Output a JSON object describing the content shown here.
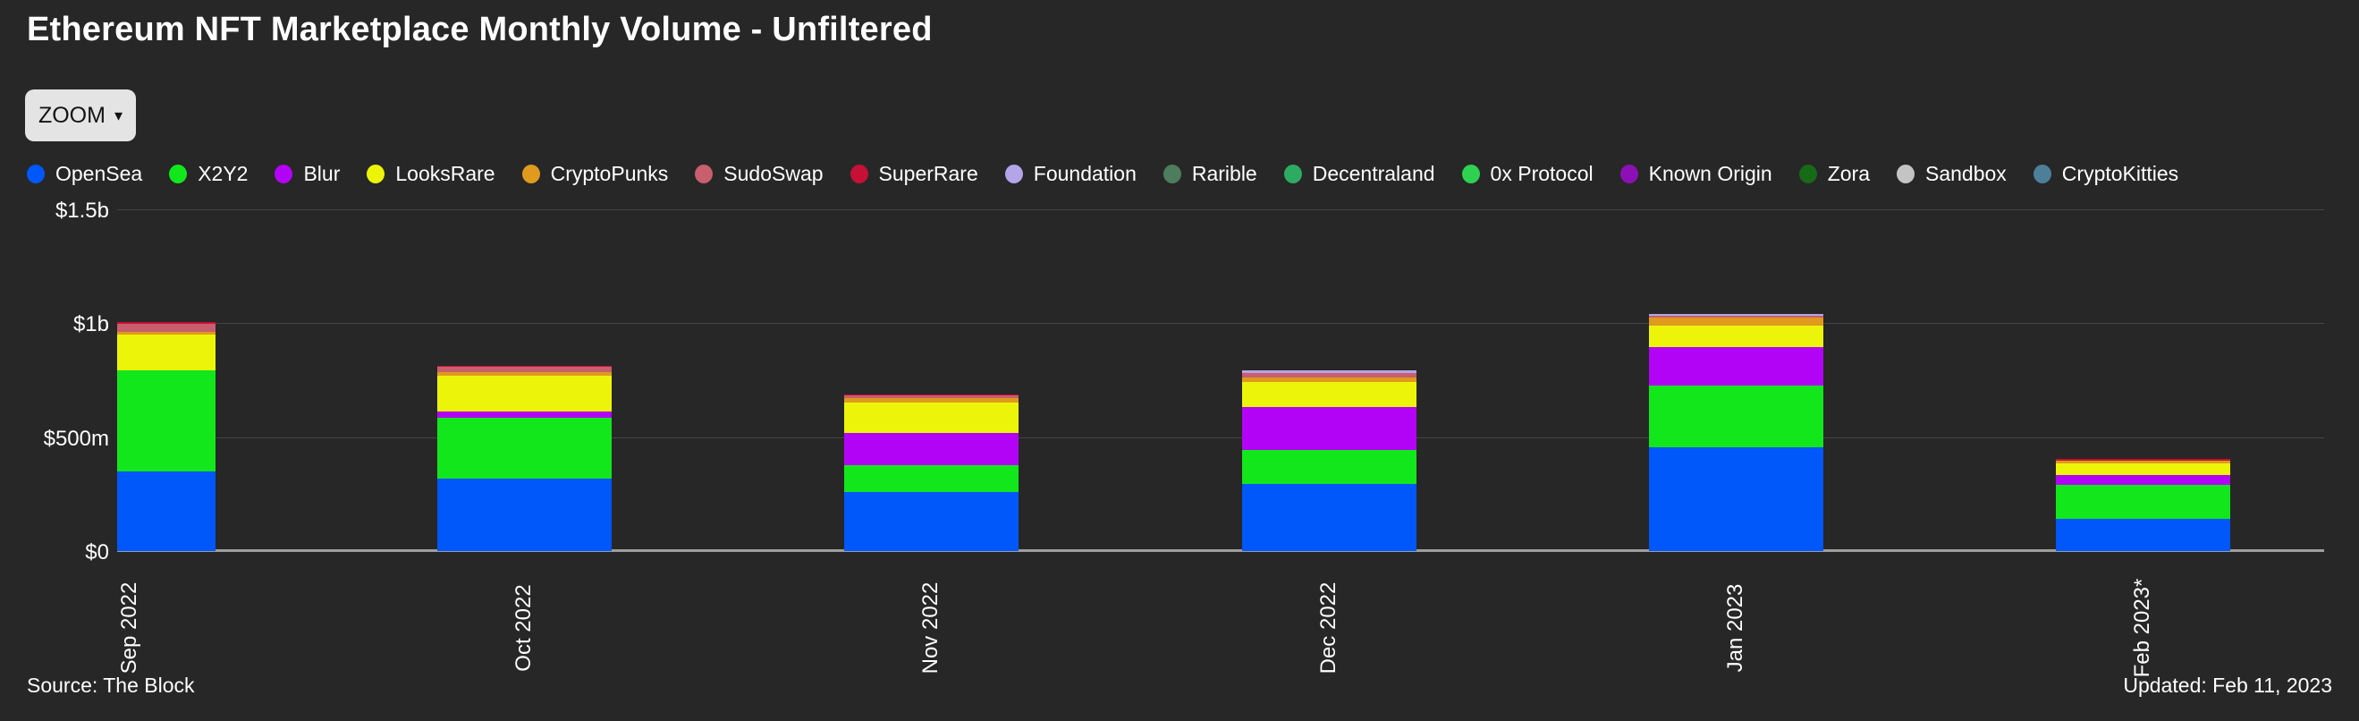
{
  "title": "Ethereum NFT Marketplace Monthly Volume - Unfiltered",
  "toolbar": {
    "zoom_label": "ZOOM",
    "zoom_caret": "▾"
  },
  "legend": [
    {
      "name": "OpenSea",
      "color": "#0057fa"
    },
    {
      "name": "X2Y2",
      "color": "#12e71c"
    },
    {
      "name": "Blur",
      "color": "#b303f7"
    },
    {
      "name": "LooksRare",
      "color": "#ecf509"
    },
    {
      "name": "CryptoPunks",
      "color": "#e09a1e"
    },
    {
      "name": "SudoSwap",
      "color": "#c75f6c"
    },
    {
      "name": "SuperRare",
      "color": "#c61036"
    },
    {
      "name": "Foundation",
      "color": "#b4a5e8"
    },
    {
      "name": "Rarible",
      "color": "#4d7d5c"
    },
    {
      "name": "Decentraland",
      "color": "#2dab63"
    },
    {
      "name": "0x Protocol",
      "color": "#2ed150"
    },
    {
      "name": "Known Origin",
      "color": "#8c10b5"
    },
    {
      "name": "Zora",
      "color": "#176a17"
    },
    {
      "name": "Sandbox",
      "color": "#c2c4c6"
    },
    {
      "name": "CryptoKitties",
      "color": "#4d7f99"
    }
  ],
  "chart_data": {
    "type": "bar",
    "stacked": true,
    "title": "Ethereum NFT Marketplace Monthly Volume - Unfiltered",
    "unit": "USD millions",
    "categories": [
      "Sep 2022",
      "Oct 2022",
      "Nov 2022",
      "Dec 2022",
      "Jan 2023",
      "Feb 2023*"
    ],
    "series": [
      {
        "name": "OpenSea",
        "color": "#0057fa",
        "values": [
          349,
          318,
          259,
          294,
          455,
          141
        ]
      },
      {
        "name": "X2Y2",
        "color": "#12e71c",
        "values": [
          443,
          267,
          118,
          149,
          271,
          149
        ]
      },
      {
        "name": "Blur",
        "color": "#b303f7",
        "values": [
          0,
          27,
          141,
          188,
          169,
          43
        ]
      },
      {
        "name": "LooksRare",
        "color": "#ecf509",
        "values": [
          157,
          157,
          133,
          110,
          94,
          51
        ]
      },
      {
        "name": "CryptoPunks",
        "color": "#e09a1e",
        "values": [
          12,
          16,
          20,
          20,
          35,
          12
        ]
      },
      {
        "name": "SudoSwap",
        "color": "#c75f6c",
        "values": [
          35,
          24,
          12,
          20,
          8,
          0
        ]
      },
      {
        "name": "SuperRare",
        "color": "#c61036",
        "values": [
          8,
          4,
          4,
          0,
          0,
          6
        ]
      },
      {
        "name": "Foundation",
        "color": "#b4a5e8",
        "values": [
          0,
          0,
          0,
          12,
          8,
          0
        ]
      }
    ],
    "totals_millions": [
      1004,
      813,
      687,
      793,
      1040,
      402
    ],
    "ylabel": "",
    "ylim_millions": [
      0,
      1500
    ],
    "yticks": [
      {
        "label": "$1.5b",
        "value": 1500
      },
      {
        "label": "$1b",
        "value": 1000
      },
      {
        "label": "$500m",
        "value": 500
      },
      {
        "label": "$0",
        "value": 0
      }
    ],
    "grid": true,
    "legend_position": "top"
  },
  "footer": {
    "source": "Source: The Block",
    "updated": "Updated: Feb 11, 2023"
  }
}
